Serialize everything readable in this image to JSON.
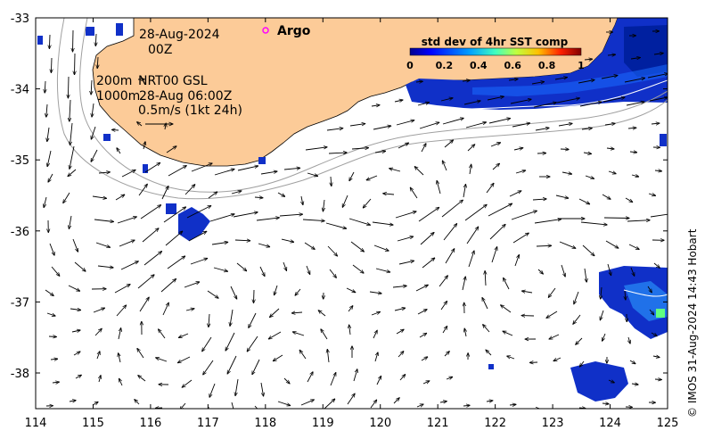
{
  "map": {
    "date": "28-Aug-2024",
    "time": "00Z",
    "argo_label": "Argo",
    "contour_200": "200m",
    "contour_1000": "1000m",
    "product": "NRT00 GSL",
    "product_time": "28-Aug 06:00Z",
    "scale_label": "0.5m/s (1kt 24h)",
    "colorbar": {
      "title": "std dev of 4hr SST comp",
      "ticks": [
        "0",
        "0.2",
        "0.4",
        "0.6",
        "0.8",
        "1"
      ]
    },
    "credit": "© IMOS 31-Aug-2024 14:43 Hobart",
    "x_ticks": [
      "114",
      "115",
      "116",
      "117",
      "118",
      "119",
      "120",
      "121",
      "122",
      "123",
      "124",
      "125"
    ],
    "y_ticks": [
      "-33",
      "-34",
      "-35",
      "-36",
      "-37",
      "-38"
    ],
    "colors": {
      "land": "#fccb98",
      "ocean": "#ffffff",
      "sst_low": "#0000a0",
      "sst_mid": "#0060ff",
      "argo": "#ff00ff",
      "isobath": "#a0a0a0"
    }
  }
}
